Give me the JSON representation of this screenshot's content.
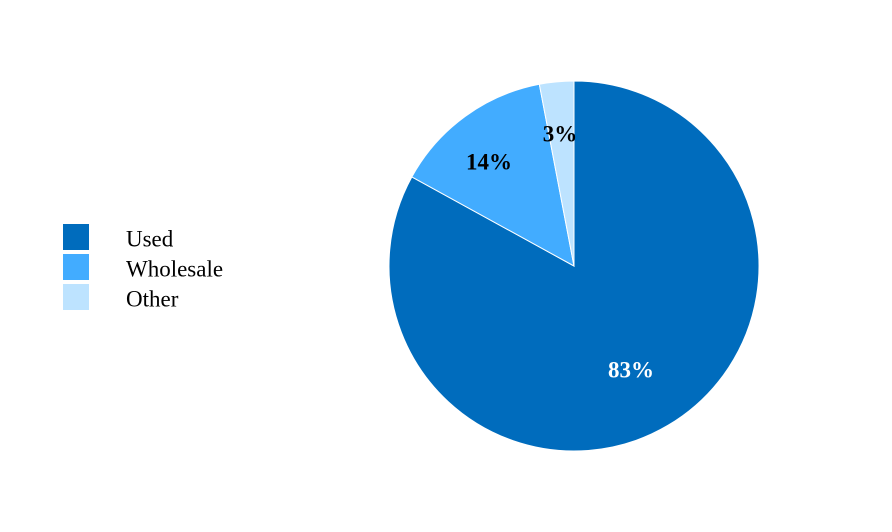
{
  "chart_data": {
    "type": "pie",
    "title": "",
    "slices": [
      {
        "label": "Used",
        "value": 83,
        "display": "83%",
        "color": "#006cbd",
        "label_color": "#ffffff"
      },
      {
        "label": "Wholesale",
        "value": 14,
        "display": "14%",
        "color": "#42acff",
        "label_color": "#000000"
      },
      {
        "label": "Other",
        "value": 3,
        "display": "3%",
        "color": "#bde3ff",
        "label_color": "#000000"
      }
    ],
    "start_angle_deg": 0,
    "direction": "clockwise",
    "legend_position": "left",
    "slice_border_color": "#ffffff"
  }
}
